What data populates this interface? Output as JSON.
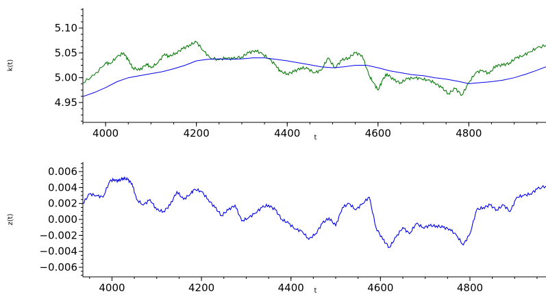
{
  "chart_data": [
    {
      "type": "line",
      "ylabel": "k(t)",
      "xlabel": "t",
      "xlim": [
        3950,
        4970
      ],
      "ylim": [
        4.91,
        5.14
      ],
      "xticks": [
        4000,
        4200,
        4400,
        4600,
        4800
      ],
      "xtick_labels": [
        "4000",
        "4200",
        "4400",
        "4600",
        "4800"
      ],
      "yticks": [
        4.95,
        5.0,
        5.05,
        5.1
      ],
      "ytick_labels": [
        "4.95",
        "5.00",
        "5.05",
        "5.10"
      ],
      "grid": false,
      "series": [
        {
          "color": "#0a7a0a",
          "x": [
            3950,
            3975,
            4000,
            4010,
            4025,
            4040,
            4050,
            4060,
            4075,
            4090,
            4100,
            4115,
            4130,
            4140,
            4155,
            4170,
            4185,
            4200,
            4215,
            4230,
            4250,
            4265,
            4280,
            4300,
            4315,
            4330,
            4345,
            4360,
            4375,
            4385,
            4400,
            4415,
            4430,
            4445,
            4460,
            4475,
            4490,
            4505,
            4520,
            4535,
            4550,
            4565,
            4580,
            4590,
            4600,
            4610,
            4620,
            4635,
            4650,
            4665,
            4680,
            4695,
            4710,
            4725,
            4740,
            4755,
            4770,
            4785,
            4800,
            4815,
            4830,
            4845,
            4860,
            4875,
            4890,
            4905,
            4920,
            4935,
            4950,
            4970
          ],
          "y": [
            4.99,
            5.005,
            5.03,
            5.028,
            5.042,
            5.05,
            5.035,
            5.02,
            5.015,
            5.028,
            5.02,
            5.03,
            5.048,
            5.042,
            5.05,
            5.058,
            5.066,
            5.072,
            5.055,
            5.04,
            5.036,
            5.04,
            5.038,
            5.042,
            5.05,
            5.055,
            5.048,
            5.038,
            5.025,
            5.012,
            5.008,
            5.012,
            5.02,
            5.018,
            5.01,
            5.015,
            5.04,
            5.02,
            5.035,
            5.04,
            5.05,
            5.045,
            5.005,
            4.99,
            4.975,
            4.995,
            5.008,
            4.995,
            4.99,
            4.998,
            5.0,
            4.998,
            4.995,
            4.99,
            4.98,
            4.968,
            4.978,
            4.965,
            4.99,
            5.01,
            5.015,
            5.008,
            5.025,
            5.025,
            5.03,
            5.04,
            5.045,
            5.052,
            5.06,
            5.065
          ]
        },
        {
          "color": "#0000ee",
          "x": [
            3950,
            3975,
            4000,
            4025,
            4050,
            4075,
            4100,
            4125,
            4150,
            4175,
            4200,
            4225,
            4250,
            4275,
            4300,
            4325,
            4350,
            4375,
            4400,
            4425,
            4450,
            4475,
            4500,
            4525,
            4550,
            4575,
            4600,
            4625,
            4650,
            4675,
            4700,
            4725,
            4750,
            4775,
            4800,
            4825,
            4850,
            4875,
            4900,
            4925,
            4950,
            4970
          ],
          "y": [
            4.962,
            4.97,
            4.98,
            4.992,
            5.0,
            5.004,
            5.008,
            5.012,
            5.018,
            5.025,
            5.034,
            5.037,
            5.038,
            5.037,
            5.038,
            5.04,
            5.04,
            5.037,
            5.034,
            5.03,
            5.026,
            5.022,
            5.02,
            5.022,
            5.025,
            5.025,
            5.02,
            5.014,
            5.01,
            5.006,
            5.004,
            5.0,
            4.997,
            4.993,
            4.988,
            4.99,
            4.992,
            4.995,
            5.0,
            5.007,
            5.015,
            5.022
          ]
        }
      ]
    },
    {
      "type": "line",
      "ylabel": "z(t)",
      "xlabel": "t",
      "xlim": [
        3935,
        4970
      ],
      "ylim": [
        -0.0072,
        0.0072
      ],
      "xticks": [
        4000,
        4200,
        4400,
        4600,
        4800
      ],
      "xtick_labels": [
        "4000",
        "4200",
        "4400",
        "4600",
        "4800"
      ],
      "yticks": [
        -0.006,
        -0.004,
        -0.002,
        0.0,
        0.002,
        0.004,
        0.006
      ],
      "ytick_labels": [
        "−0.006",
        "−0.004",
        "−0.002",
        "0.000",
        "0.002",
        "0.004",
        "0.006"
      ],
      "grid": false,
      "series": [
        {
          "color": "#0000ee",
          "x": [
            3935,
            3950,
            3965,
            3980,
            3995,
            4005,
            4015,
            4025,
            4035,
            4045,
            4055,
            4070,
            4085,
            4100,
            4115,
            4130,
            4145,
            4160,
            4175,
            4185,
            4200,
            4215,
            4230,
            4245,
            4260,
            4275,
            4290,
            4305,
            4320,
            4335,
            4350,
            4365,
            4380,
            4395,
            4410,
            4425,
            4440,
            4455,
            4470,
            4485,
            4500,
            4515,
            4530,
            4545,
            4560,
            4575,
            4590,
            4605,
            4620,
            4635,
            4650,
            4665,
            4680,
            4695,
            4710,
            4725,
            4740,
            4755,
            4770,
            4785,
            4800,
            4815,
            4830,
            4845,
            4860,
            4875,
            4890,
            4905,
            4920,
            4935,
            4950,
            4970
          ],
          "y": [
            0.002,
            0.0032,
            0.003,
            0.0028,
            0.0048,
            0.005,
            0.0048,
            0.0052,
            0.005,
            0.0045,
            0.0025,
            0.0018,
            0.0025,
            0.0012,
            0.001,
            0.0018,
            0.0035,
            0.0025,
            0.0032,
            0.0038,
            0.0035,
            0.0025,
            0.0015,
            0.0005,
            0.0012,
            0.0018,
            -0.0002,
            0.0002,
            0.0008,
            0.0015,
            0.0018,
            0.0012,
            0.0,
            -0.0005,
            -0.0012,
            -0.0015,
            -0.0025,
            -0.0018,
            -0.0005,
            0.0002,
            -0.0008,
            0.0015,
            0.002,
            0.0012,
            0.002,
            0.0028,
            -0.001,
            -0.0025,
            -0.0035,
            -0.0022,
            -0.001,
            -0.0018,
            -0.0005,
            -0.001,
            -0.0008,
            -0.0008,
            -0.001,
            -0.0012,
            -0.002,
            -0.0032,
            -0.0018,
            0.0012,
            0.0015,
            0.0018,
            0.0012,
            0.0018,
            0.001,
            0.0028,
            0.003,
            0.0032,
            0.0038,
            0.0042
          ]
        }
      ]
    }
  ]
}
